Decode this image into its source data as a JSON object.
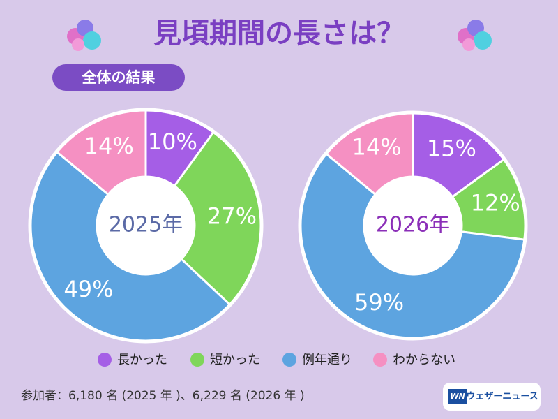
{
  "title": "見頃期間の長さは？",
  "subtitle": "全体の結果",
  "chart_data": [
    {
      "type": "pie",
      "center_label": "2025年",
      "center_color": "#5b6aa6",
      "categories": [
        "長かった",
        "短かった",
        "例年通り",
        "わからない"
      ],
      "values": [
        10,
        27,
        49,
        14
      ],
      "value_labels": [
        "10%",
        "27%",
        "49%",
        "14%"
      ],
      "colors": [
        "#a55ee6",
        "#7fd65a",
        "#5da4e0",
        "#f590c2"
      ]
    },
    {
      "type": "pie",
      "center_label": "2026年",
      "center_color": "#8b2fb8",
      "categories": [
        "長かった",
        "短かった",
        "例年通り",
        "わからない"
      ],
      "values": [
        15,
        12,
        59,
        14
      ],
      "value_labels": [
        "15%",
        "12%",
        "59%",
        "14%"
      ],
      "colors": [
        "#a55ee6",
        "#7fd65a",
        "#5da4e0",
        "#f590c2"
      ]
    }
  ],
  "note": "参加者：6,180 名 (2025 年 )、6,229 名 (2026 年 )",
  "logo": {
    "mark": "WN",
    "text": "ウェザーニュース"
  }
}
